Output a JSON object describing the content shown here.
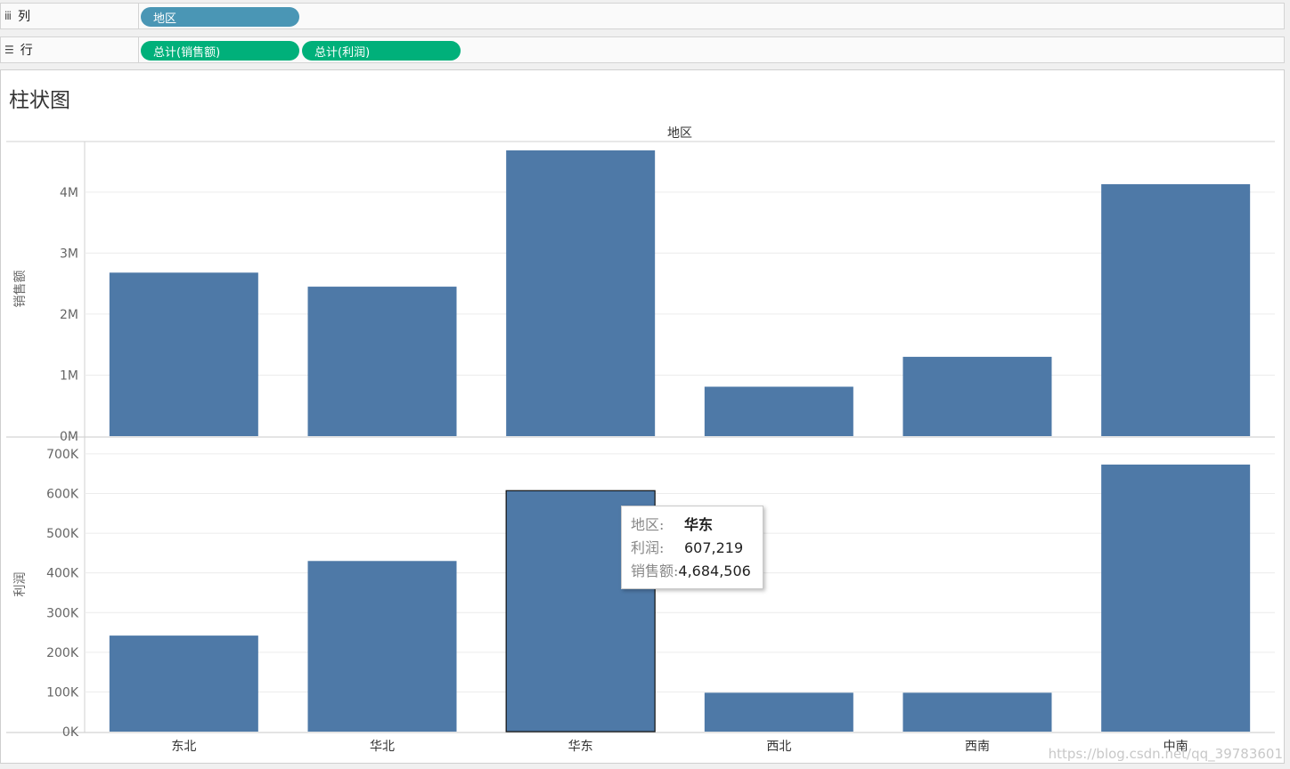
{
  "shelves": {
    "columns": {
      "icon": "columns-icon",
      "label": "列",
      "pills": [
        "地区"
      ]
    },
    "rows": {
      "icon": "rows-icon",
      "label": "行",
      "pills": [
        "总计(销售额)",
        "总计(利润)"
      ]
    }
  },
  "sheet": {
    "title": "柱状图"
  },
  "colors": {
    "bar": "#4e79a7",
    "dimension_pill": "#4a96b5",
    "measure_pill": "#00b07a"
  },
  "chart_data": [
    {
      "type": "bar",
      "header": "地区",
      "categories": [
        "东北",
        "华北",
        "华东",
        "西北",
        "西南",
        "中南"
      ],
      "ylabel": "销售额",
      "values": [
        2680000,
        2450000,
        4684506,
        810000,
        1300000,
        4130000
      ],
      "ylim": [
        0,
        4800000
      ],
      "ticks": [
        0,
        1000000,
        2000000,
        3000000,
        4000000
      ],
      "tick_labels": [
        "0M",
        "1M",
        "2M",
        "3M",
        "4M"
      ]
    },
    {
      "type": "bar",
      "categories": [
        "东北",
        "华北",
        "华东",
        "西北",
        "西南",
        "中南"
      ],
      "ylabel": "利润",
      "values": [
        242000,
        430000,
        607219,
        98000,
        98000,
        673000
      ],
      "ylim": [
        0,
        720000
      ],
      "ticks": [
        0,
        100000,
        200000,
        300000,
        400000,
        500000,
        600000,
        700000
      ],
      "tick_labels": [
        "0K",
        "100K",
        "200K",
        "300K",
        "400K",
        "500K",
        "600K",
        "700K"
      ],
      "highlight_index": 2
    }
  ],
  "tooltip": {
    "rows": [
      {
        "key": "地区:",
        "value": "华东"
      },
      {
        "key": "利润:",
        "value": "607,219"
      },
      {
        "key": "销售额:",
        "value": "4,684,506"
      }
    ]
  },
  "watermark": "https://blog.csdn.net/qq_39783601"
}
